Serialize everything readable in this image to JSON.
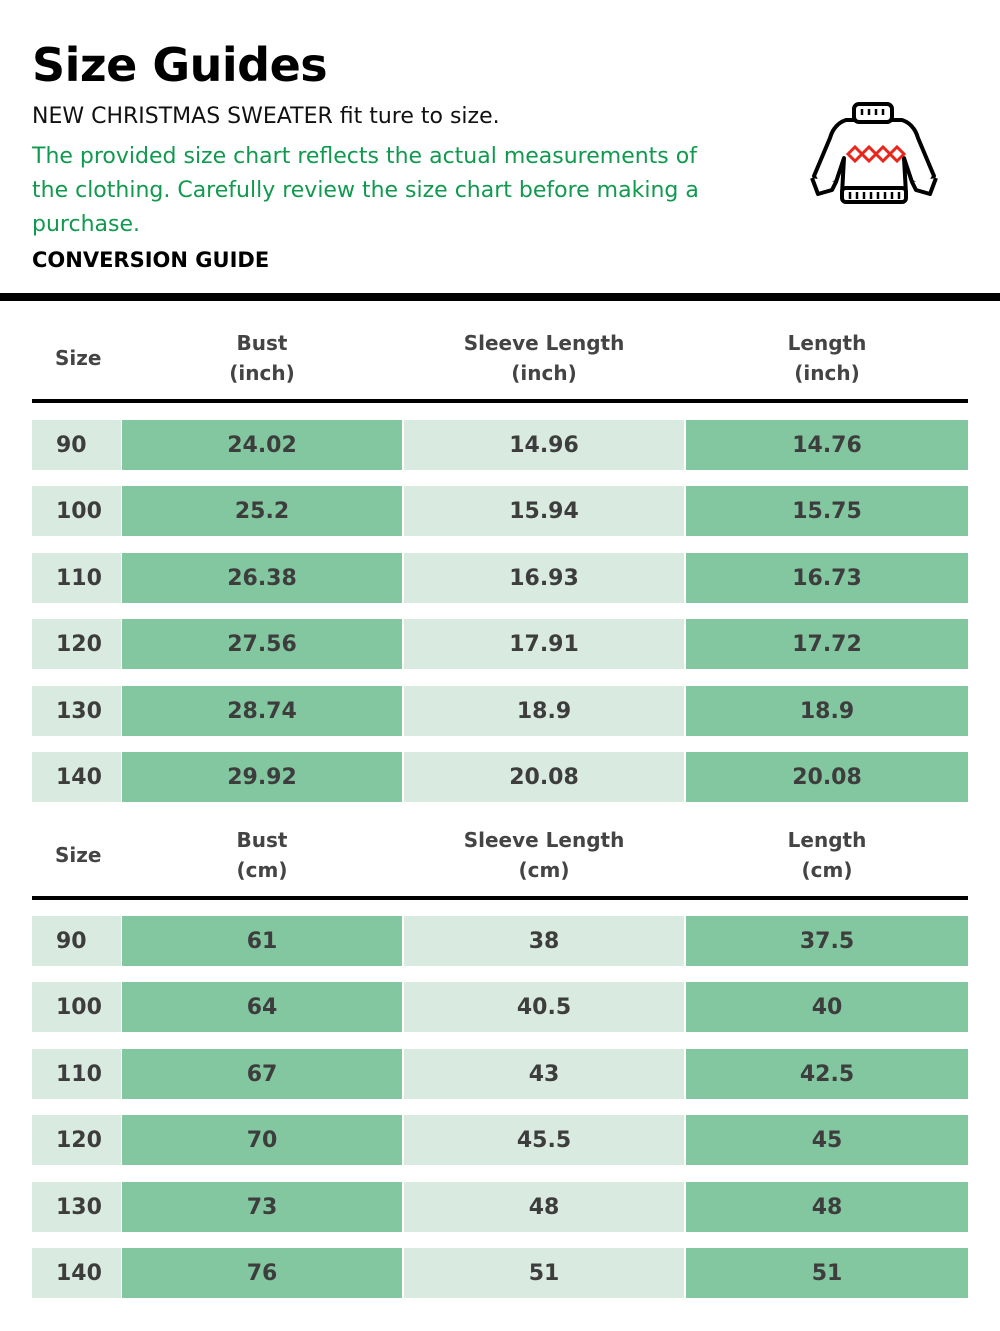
{
  "header": {
    "title": "Size Guides",
    "subtitle": "NEW CHRISTMAS SWEATER fit ture to size.",
    "description": "The provided size chart reflects the actual measurements of the clothing. Carefully review the size chart before making a purchase.",
    "conversion_label": "CONVERSION GUIDE",
    "icon": "sweater-icon"
  },
  "colors": {
    "light_cell": "#d9ebe0",
    "dark_cell": "#82c79f",
    "accent_text": "#119a4f"
  },
  "tables": [
    {
      "headers": [
        [
          "Size",
          ""
        ],
        [
          "Bust",
          "(inch)"
        ],
        [
          "Sleeve Length",
          "(inch)"
        ],
        [
          "Length",
          "(inch)"
        ]
      ],
      "rows": [
        [
          "90",
          "24.02",
          "14.96",
          "14.76"
        ],
        [
          "100",
          "25.2",
          "15.94",
          "15.75"
        ],
        [
          "110",
          "26.38",
          "16.93",
          "16.73"
        ],
        [
          "120",
          "27.56",
          "17.91",
          "17.72"
        ],
        [
          "130",
          "28.74",
          "18.9",
          "18.9"
        ],
        [
          "140",
          "29.92",
          "20.08",
          "20.08"
        ]
      ]
    },
    {
      "headers": [
        [
          "Size",
          ""
        ],
        [
          "Bust",
          "(cm)"
        ],
        [
          "Sleeve Length",
          "(cm)"
        ],
        [
          "Length",
          "(cm)"
        ]
      ],
      "rows": [
        [
          "90",
          "61",
          "38",
          "37.5"
        ],
        [
          "100",
          "64",
          "40.5",
          "40"
        ],
        [
          "110",
          "67",
          "43",
          "42.5"
        ],
        [
          "120",
          "70",
          "45.5",
          "45"
        ],
        [
          "130",
          "73",
          "48",
          "48"
        ],
        [
          "140",
          "76",
          "51",
          "51"
        ]
      ]
    }
  ]
}
